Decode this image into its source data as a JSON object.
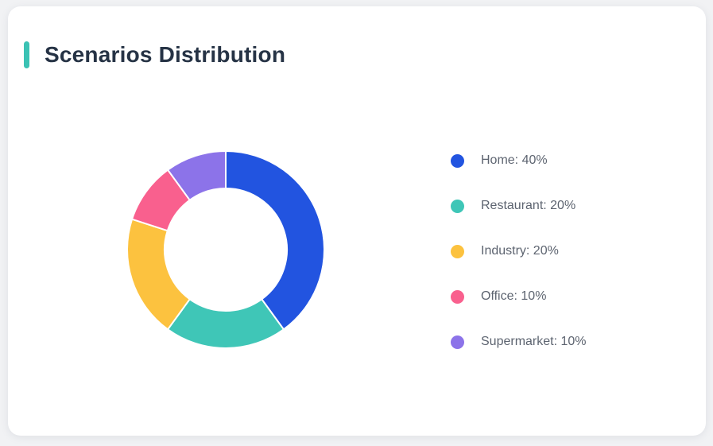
{
  "card": {
    "title": "Scenarios Distribution",
    "accent_color": "#3BC2B4"
  },
  "chart_data": {
    "type": "pie",
    "variant": "donut",
    "title": "Scenarios Distribution",
    "categories": [
      "Home",
      "Restaurant",
      "Industry",
      "Office",
      "Supermarket"
    ],
    "values": [
      40,
      20,
      20,
      10,
      10
    ],
    "unit": "%",
    "colors": [
      "#2254E0",
      "#3FC6B7",
      "#FCC23F",
      "#F9608E",
      "#8C73E9"
    ],
    "legend_position": "right",
    "legend_separator": ": ",
    "start_angle": "top",
    "direction": "clockwise",
    "outer_radius": 124,
    "inner_radius": 77,
    "segment_gap_color": "#FFFFFF"
  }
}
